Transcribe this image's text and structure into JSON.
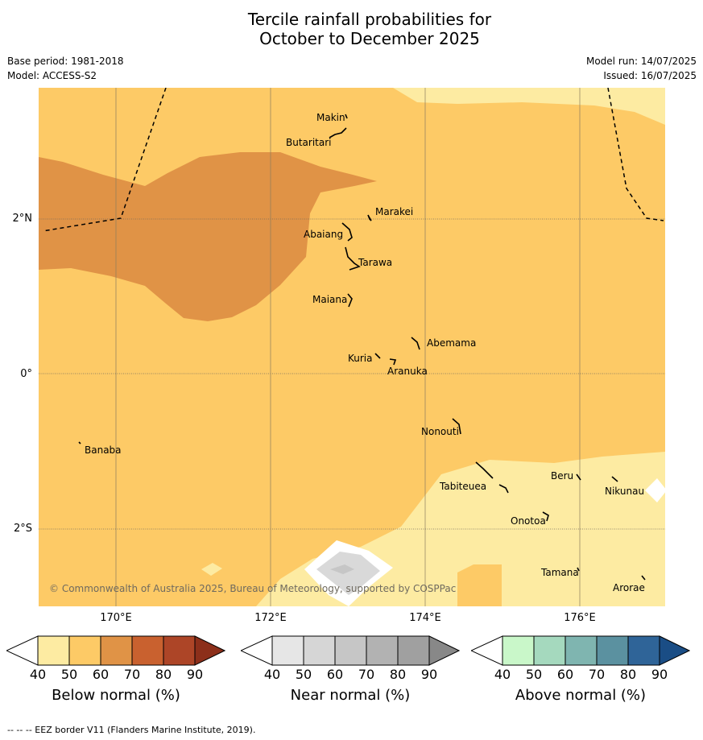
{
  "title": {
    "line1": "Tercile rainfall probabilities for",
    "line2": "October to December 2025"
  },
  "meta": {
    "base_period": "Base period: 1981-2018",
    "model": "Model: ACCESS-S2",
    "model_run": "Model run: 14/07/2025",
    "issued": "Issued: 16/07/2025"
  },
  "map": {
    "lat_labels": [
      "2°N",
      "0°",
      "2°S"
    ],
    "lon_labels": [
      "170°E",
      "172°E",
      "174°E",
      "176°E"
    ],
    "islands": [
      "Makin",
      "Butaritari",
      "Marakei",
      "Abaiang",
      "Tarawa",
      "Maiana",
      "Abemama",
      "Kuria",
      "Aranuka",
      "Nonouti",
      "Banaba",
      "Tabiteuea",
      "Beru",
      "Nikunau",
      "Onotoa",
      "Tamana",
      "Arorae"
    ],
    "copyright": "© Commonwealth of Australia 2025, Bureau of Meteorology, supported by COSPPac",
    "colors": {
      "below_50": "#fdeba2",
      "below_60": "#fdca66",
      "below_70": "#e09346",
      "near_50": "#d9d9d9",
      "near_40": "#ffffff"
    }
  },
  "colorbars": [
    {
      "title": "Below normal (%)",
      "ticks": [
        "40",
        "50",
        "60",
        "70",
        "80",
        "90"
      ],
      "colors": [
        "#ffffff",
        "#fdeba2",
        "#fdca66",
        "#e09346",
        "#c9612f",
        "#ad4527",
        "#8c2f1a"
      ]
    },
    {
      "title": "Near normal (%)",
      "ticks": [
        "40",
        "50",
        "60",
        "70",
        "80",
        "90"
      ],
      "colors": [
        "#ffffff",
        "#e6e6e6",
        "#d6d6d6",
        "#c6c6c6",
        "#b2b2b2",
        "#a0a0a0",
        "#888888"
      ]
    },
    {
      "title": "Above normal (%)",
      "ticks": [
        "40",
        "50",
        "60",
        "70",
        "80",
        "90"
      ],
      "colors": [
        "#ffffff",
        "#c9f7c9",
        "#a5d9be",
        "#7fb5b0",
        "#5b91a0",
        "#2f6498",
        "#1a4d85"
      ]
    }
  ],
  "footnote": "-- -- -- EEZ border V11 (Flanders Marine Institute, 2019)."
}
